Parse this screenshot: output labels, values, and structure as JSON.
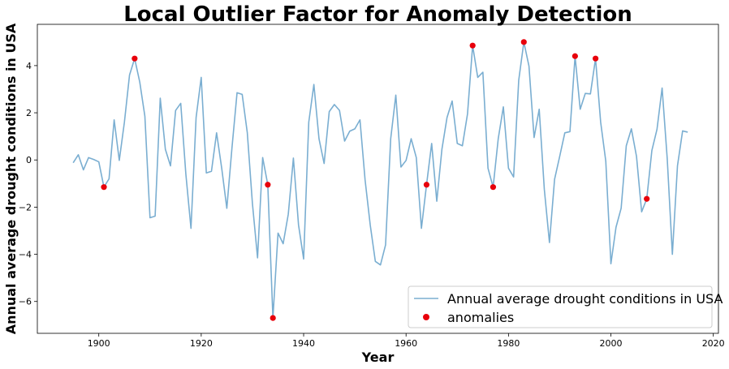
{
  "chart_data": {
    "type": "line",
    "title": "Local Outlier Factor for Anomaly Detection",
    "xlabel": "Year",
    "ylabel": "Annual average drought conditions in USA",
    "xlim": [
      1888,
      2021
    ],
    "ylim": [
      -7.35,
      5.75
    ],
    "xticks": [
      1900,
      1920,
      1940,
      1960,
      1980,
      2000,
      2020
    ],
    "yticks": [
      -6,
      -4,
      -2,
      0,
      2,
      4
    ],
    "grid": false,
    "legend_position": "bottom-right",
    "colors": {
      "line": "#7aaed1",
      "anomaly": "#e8000b"
    },
    "series": [
      {
        "name": "Annual average drought conditions in USA",
        "kind": "line",
        "x": [
          1895,
          1896,
          1897,
          1898,
          1899,
          1900,
          1901,
          1902,
          1903,
          1904,
          1905,
          1906,
          1907,
          1908,
          1909,
          1910,
          1911,
          1912,
          1913,
          1914,
          1915,
          1916,
          1917,
          1918,
          1919,
          1920,
          1921,
          1922,
          1923,
          1924,
          1925,
          1926,
          1927,
          1928,
          1929,
          1930,
          1931,
          1932,
          1933,
          1934,
          1935,
          1936,
          1937,
          1938,
          1939,
          1940,
          1941,
          1942,
          1943,
          1944,
          1945,
          1946,
          1947,
          1948,
          1949,
          1950,
          1951,
          1952,
          1953,
          1954,
          1955,
          1956,
          1957,
          1958,
          1959,
          1960,
          1961,
          1962,
          1963,
          1964,
          1965,
          1966,
          1967,
          1968,
          1969,
          1970,
          1971,
          1972,
          1973,
          1974,
          1975,
          1976,
          1977,
          1978,
          1979,
          1980,
          1981,
          1982,
          1983,
          1984,
          1985,
          1986,
          1987,
          1988,
          1989,
          1990,
          1991,
          1992,
          1993,
          1994,
          1995,
          1996,
          1997,
          1998,
          1999,
          2000,
          2001,
          2002,
          2003,
          2004,
          2005,
          2006,
          2007,
          2008,
          2009,
          2010,
          2011,
          2012,
          2013,
          2014,
          2015
        ],
        "y": [
          -0.12,
          0.22,
          -0.42,
          0.1,
          0.02,
          -0.08,
          -1.15,
          -0.8,
          1.7,
          -0.02,
          1.6,
          3.6,
          4.3,
          3.3,
          1.85,
          -2.45,
          -2.38,
          2.62,
          0.45,
          -0.25,
          2.1,
          2.4,
          -0.6,
          -2.9,
          1.8,
          3.5,
          -0.55,
          -0.48,
          1.15,
          -0.35,
          -2.05,
          0.5,
          2.85,
          2.78,
          1.15,
          -1.85,
          -4.15,
          0.1,
          -1.05,
          -6.7,
          -3.1,
          -3.55,
          -2.3,
          0.08,
          -2.75,
          -4.2,
          1.6,
          3.2,
          0.9,
          -0.15,
          2.05,
          2.35,
          2.1,
          0.8,
          1.22,
          1.32,
          1.7,
          -0.85,
          -2.75,
          -4.3,
          -4.45,
          -3.6,
          0.9,
          2.75,
          -0.3,
          -0.02,
          0.9,
          0.1,
          -2.9,
          -1.05,
          0.7,
          -1.75,
          0.45,
          1.8,
          2.5,
          0.7,
          0.6,
          1.95,
          4.85,
          3.5,
          3.72,
          -0.35,
          -1.15,
          0.9,
          2.25,
          -0.35,
          -0.72,
          3.38,
          5.0,
          3.98,
          0.95,
          2.15,
          -1.25,
          -3.5,
          -0.82,
          0.15,
          1.15,
          1.2,
          4.4,
          2.15,
          2.82,
          2.8,
          4.3,
          1.6,
          -0.05,
          -4.4,
          -2.85,
          -2.05,
          0.6,
          1.32,
          0.15,
          -2.2,
          -1.65,
          0.4,
          1.3,
          3.05,
          0.05,
          -4.0,
          -0.25,
          1.23,
          1.18
        ]
      },
      {
        "name": "anomalies",
        "kind": "scatter",
        "x": [
          1901,
          1907,
          1933,
          1934,
          1964,
          1973,
          1977,
          1983,
          1993,
          1997,
          2007
        ],
        "y": [
          -1.15,
          4.3,
          -1.05,
          -6.7,
          -1.05,
          4.85,
          -1.15,
          5.0,
          4.4,
          4.3,
          -1.65
        ]
      }
    ]
  }
}
